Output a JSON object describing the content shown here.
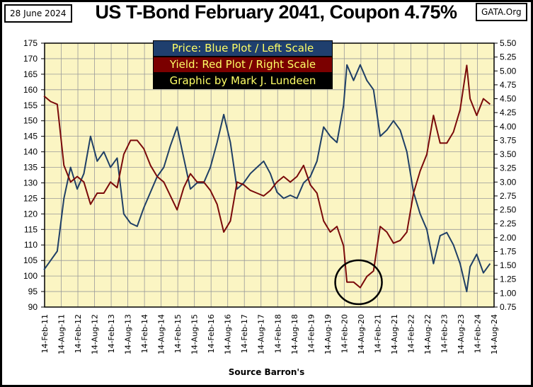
{
  "header": {
    "date": "28 June 2024",
    "title": "US T-Bond February 2041, Coupon 4.75%",
    "site": "GATA.Org"
  },
  "legend": [
    "Price:  Blue Plot / Left Scale",
    "Yield:  Red Plot / Right Scale",
    "Graphic by Mark J. Lundeen"
  ],
  "source": "Source Barron's",
  "colors": {
    "price": "#1f3f66",
    "yield": "#7a0a0a",
    "plot_bg": "#fbf5c3",
    "legend_bg": [
      "#1f3f6e",
      "#7b0000",
      "#000000"
    ],
    "legend_text": "#ffff66"
  },
  "chart_data": {
    "type": "line",
    "title": "US T-Bond February 2041, Coupon 4.75%",
    "xlabel": "Source Barron's",
    "x_ticks": [
      "14-Feb-11",
      "14-Aug-11",
      "14-Feb-12",
      "14-Aug-12",
      "14-Feb-13",
      "14-Aug-13",
      "14-Feb-14",
      "14-Aug-14",
      "14-Feb-15",
      "14-Aug-15",
      "14-Feb-16",
      "14-Aug-16",
      "14-Feb-17",
      "14-Aug-17",
      "14-Feb-18",
      "14-Aug-18",
      "14-Feb-19",
      "14-Aug-19",
      "14-Feb-20",
      "14-Aug-20",
      "14-Feb-21",
      "14-Aug-21",
      "14-Feb-22",
      "14-Aug-22",
      "14-Feb-23",
      "14-Aug-23",
      "14-Feb-24",
      "14-Aug-24"
    ],
    "x_range": [
      2011.12,
      2024.62
    ],
    "left_axis": {
      "label": "Price",
      "ylim": [
        90,
        175
      ],
      "ticks": [
        "90",
        "95",
        "100",
        "105",
        "110",
        "115",
        "120",
        "125",
        "130",
        "135",
        "140",
        "145",
        "150",
        "155",
        "160",
        "165",
        "170",
        "175"
      ]
    },
    "right_axis": {
      "label": "Yield",
      "ylim": [
        0.75,
        5.5
      ],
      "ticks": [
        "0.75",
        "1.00",
        "1.25",
        "1.50",
        "1.75",
        "2.00",
        "2.25",
        "2.50",
        "2.75",
        "3.00",
        "3.25",
        "3.50",
        "3.75",
        "4.00",
        "4.25",
        "4.50",
        "4.75",
        "5.00",
        "5.25",
        "5.50"
      ]
    },
    "x": [
      2011.1,
      2011.3,
      2011.5,
      2011.7,
      2011.9,
      2012.1,
      2012.3,
      2012.5,
      2012.7,
      2012.9,
      2013.1,
      2013.3,
      2013.5,
      2013.7,
      2013.9,
      2014.1,
      2014.3,
      2014.5,
      2014.7,
      2014.9,
      2015.1,
      2015.3,
      2015.5,
      2015.7,
      2015.9,
      2016.1,
      2016.3,
      2016.5,
      2016.7,
      2016.9,
      2017.1,
      2017.3,
      2017.5,
      2017.7,
      2017.9,
      2018.1,
      2018.3,
      2018.5,
      2018.7,
      2018.9,
      2019.1,
      2019.3,
      2019.5,
      2019.7,
      2019.9,
      2020.1,
      2020.2,
      2020.4,
      2020.6,
      2020.8,
      2021.0,
      2021.2,
      2021.4,
      2021.6,
      2021.8,
      2022.0,
      2022.2,
      2022.4,
      2022.6,
      2022.8,
      2023.0,
      2023.2,
      2023.4,
      2023.6,
      2023.8,
      2023.9,
      2024.1,
      2024.3,
      2024.5
    ],
    "series": [
      {
        "name": "Price",
        "axis": "left",
        "values": [
          102,
          105,
          108,
          125,
          135,
          128,
          133,
          145,
          137,
          140,
          135,
          138,
          120,
          117,
          116,
          122,
          127,
          132,
          135,
          142,
          148,
          138,
          128,
          130,
          130,
          135,
          143,
          152,
          143,
          128,
          130,
          133,
          135,
          137,
          133,
          127,
          125,
          126,
          125,
          130,
          132,
          137,
          148,
          145,
          143,
          155,
          168,
          163,
          168,
          163,
          160,
          145,
          147,
          150,
          147,
          140,
          127,
          120,
          115,
          104,
          113,
          114,
          110,
          104,
          95,
          103,
          107,
          101,
          104
        ]
      },
      {
        "name": "Yield",
        "axis": "right",
        "values": [
          4.55,
          4.45,
          4.4,
          3.3,
          3.0,
          3.1,
          3.0,
          2.6,
          2.8,
          2.8,
          3.0,
          2.9,
          3.5,
          3.75,
          3.75,
          3.6,
          3.3,
          3.1,
          3.0,
          2.75,
          2.5,
          2.9,
          3.15,
          3.0,
          3.0,
          2.85,
          2.6,
          2.1,
          2.3,
          3.0,
          2.95,
          2.85,
          2.8,
          2.75,
          2.85,
          3.0,
          3.1,
          3.0,
          3.1,
          3.3,
          2.95,
          2.8,
          2.3,
          2.1,
          2.2,
          1.85,
          1.2,
          1.2,
          1.1,
          1.3,
          1.4,
          2.2,
          2.1,
          1.9,
          1.95,
          2.1,
          2.8,
          3.2,
          3.5,
          4.2,
          3.7,
          3.7,
          3.9,
          4.3,
          5.1,
          4.5,
          4.2,
          4.5,
          4.4
        ]
      }
    ],
    "annotations": [
      {
        "type": "circle",
        "x": 2020.55,
        "y_price": 98,
        "note": "2020 yield low"
      }
    ],
    "grid": true
  }
}
